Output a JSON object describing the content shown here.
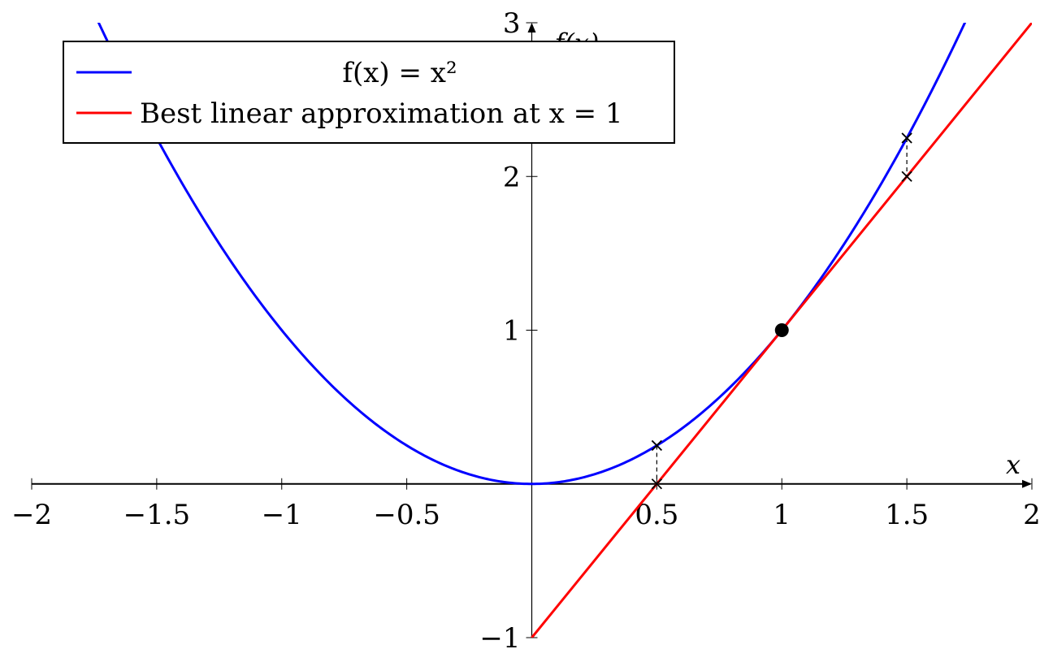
{
  "chart_data": {
    "type": "line",
    "xlabel": "x",
    "ylabel": "f(x)",
    "xlim": [
      -2,
      2
    ],
    "ylim": [
      -1,
      3
    ],
    "x_ticks": [
      -2,
      -1.5,
      -1,
      -0.5,
      0.5,
      1,
      1.5,
      2
    ],
    "x_tick_labels": [
      "−2",
      "−1.5",
      "−1",
      "−0.5",
      "0.5",
      "1",
      "1.5",
      "2"
    ],
    "y_ticks": [
      -1,
      1,
      2,
      3
    ],
    "y_tick_labels": [
      "−1",
      "1",
      "2",
      "3"
    ],
    "grid": false,
    "legend_position": "top-left",
    "series": [
      {
        "name": "f(x) = x²",
        "color": "#0000ff",
        "function": "x^2",
        "x_range": [
          -2,
          2
        ]
      },
      {
        "name": "Best linear approximation at x = 1",
        "color": "#ff0000",
        "function": "2x-1",
        "x_range": [
          0,
          2
        ]
      }
    ],
    "tangent_point": {
      "x": 1,
      "y": 1
    },
    "error_markers": [
      {
        "x": 0.5,
        "y_curve": 0.25,
        "y_line": 0
      },
      {
        "x": 1.5,
        "y_curve": 2.25,
        "y_line": 2
      }
    ]
  }
}
